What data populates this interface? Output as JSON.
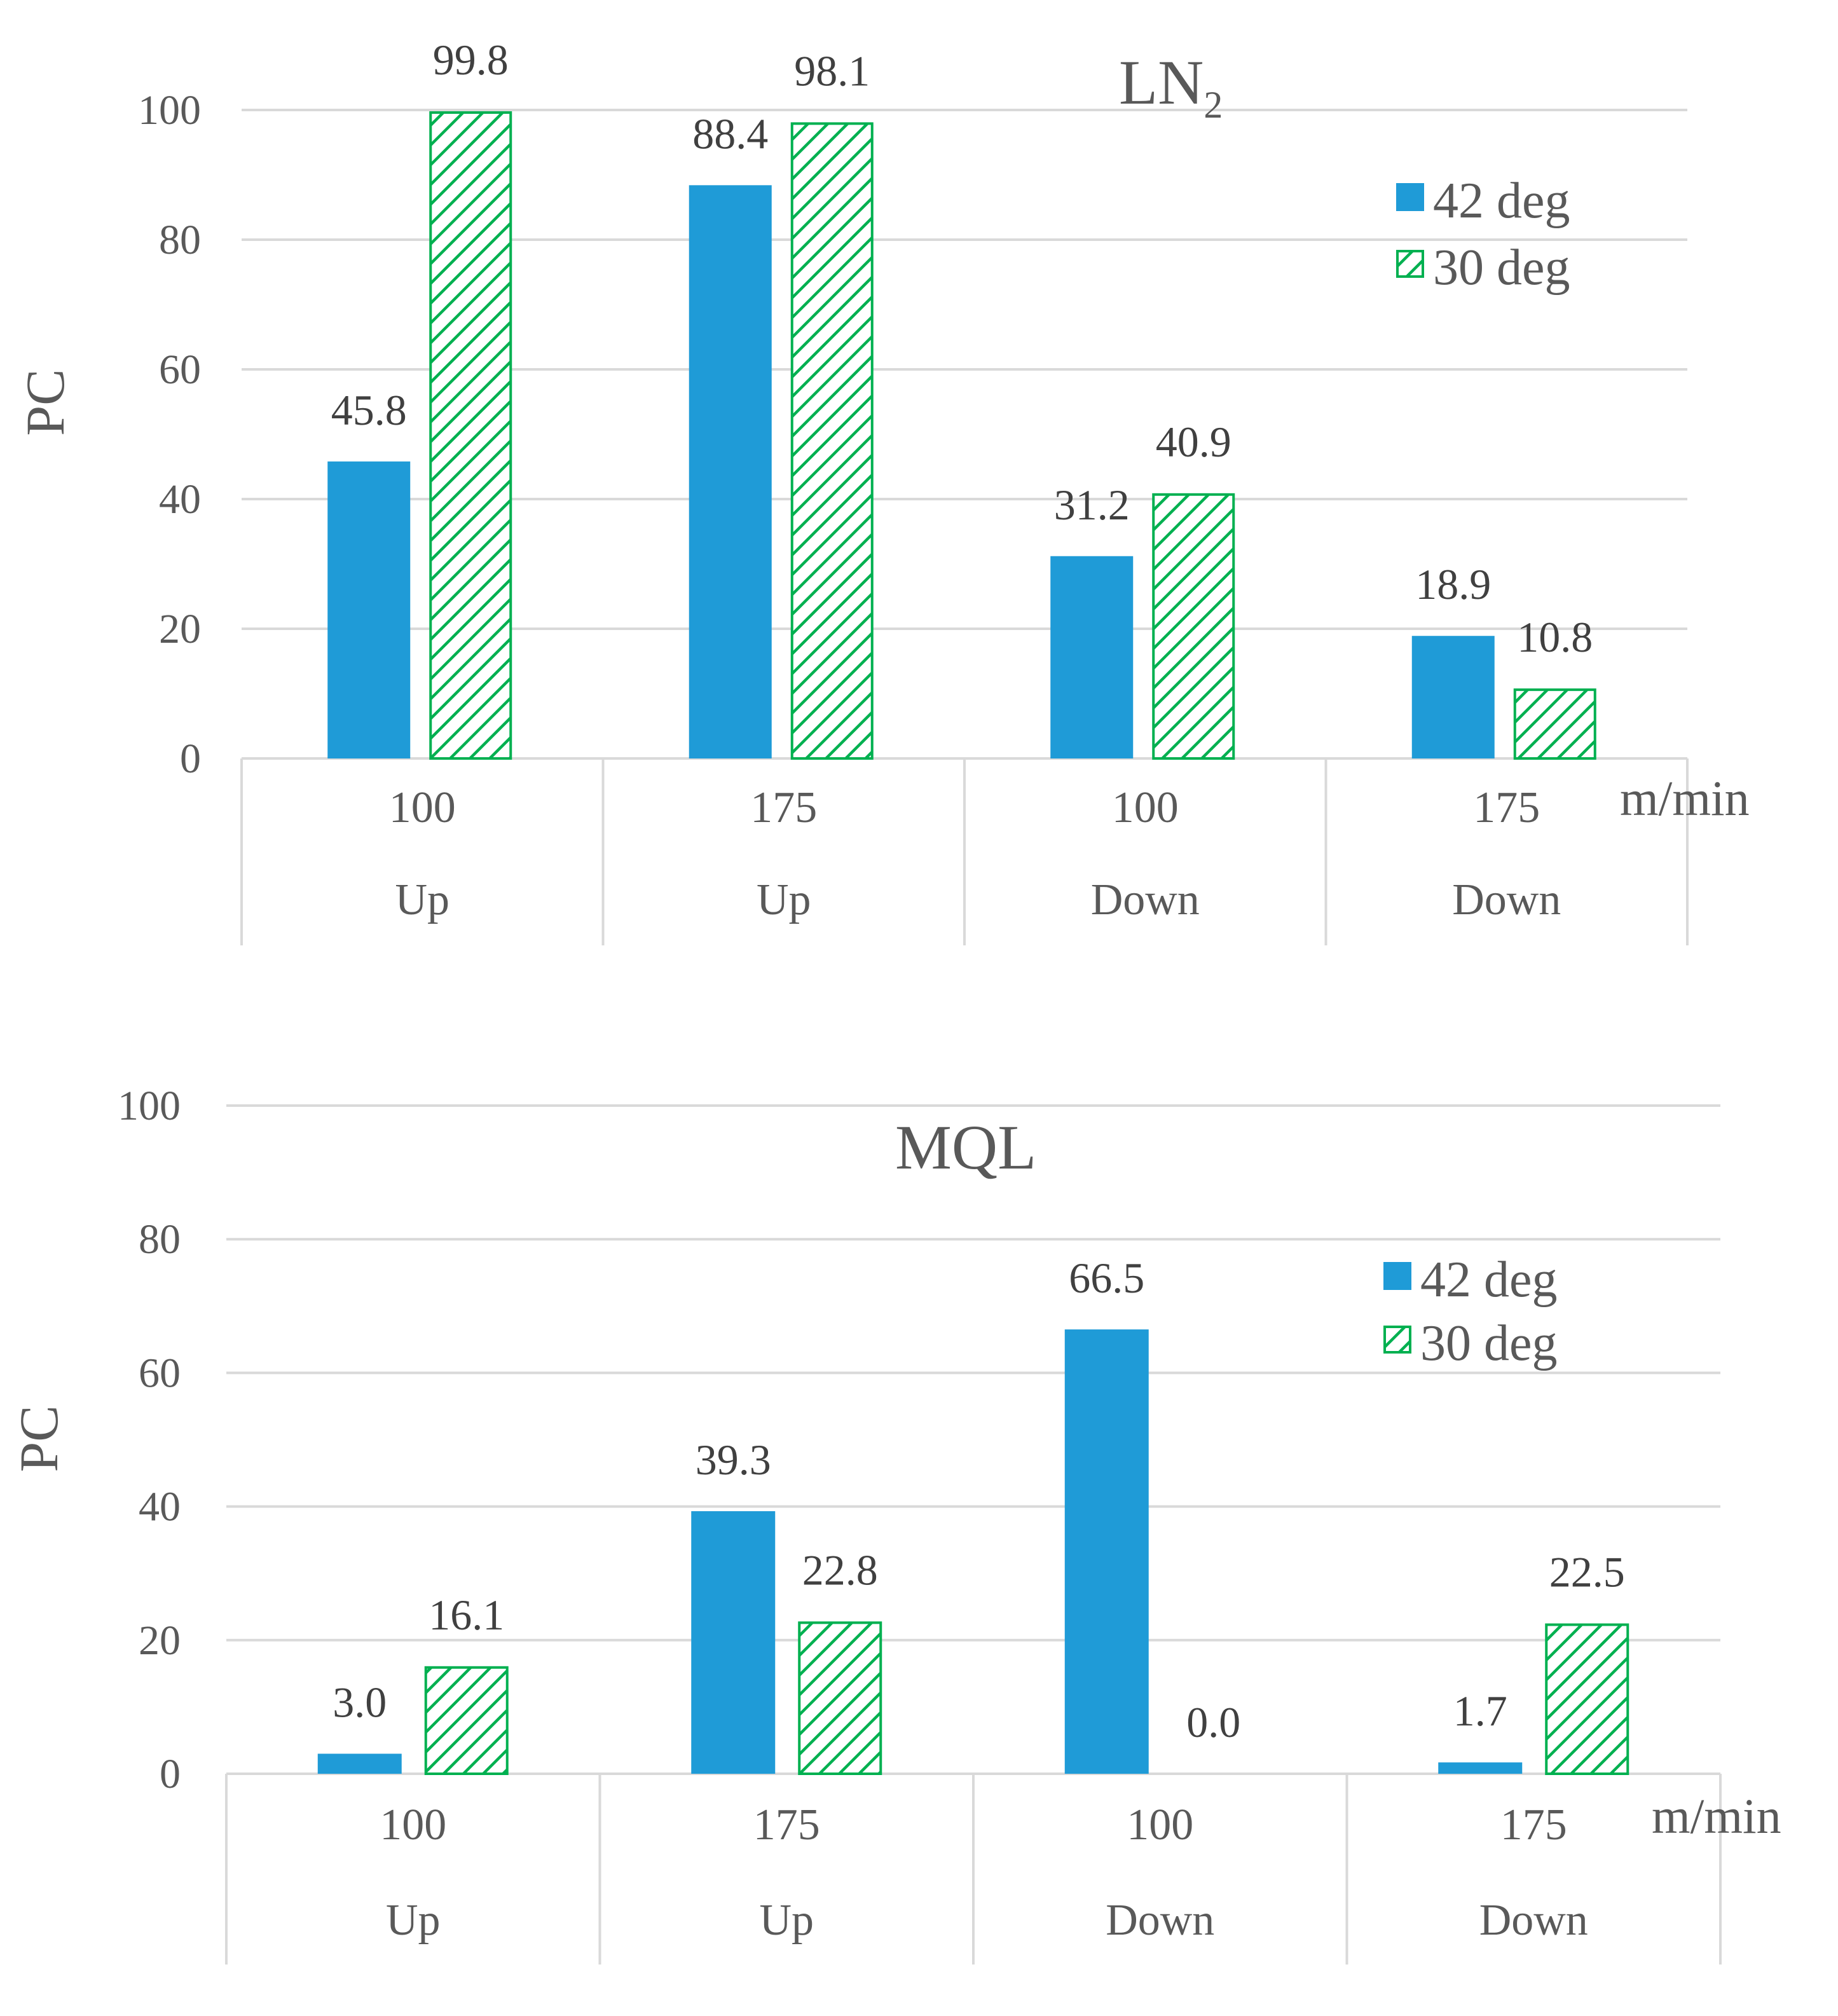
{
  "chart_data": [
    {
      "type": "bar",
      "title": "LN",
      "title_subscript": "2",
      "ylabel": "PC",
      "unit_label": "m/min",
      "ylim": [
        0,
        100
      ],
      "yticks": [
        "0",
        "20",
        "40",
        "60",
        "80",
        "100"
      ],
      "categories": [
        {
          "speed": "100",
          "direction": "Up"
        },
        {
          "speed": "175",
          "direction": "Up"
        },
        {
          "speed": "100",
          "direction": "Down"
        },
        {
          "speed": "175",
          "direction": "Down"
        }
      ],
      "series": [
        {
          "name": "42 deg",
          "style": "solid",
          "color": "#1f9bd7",
          "values": [
            45.8,
            88.4,
            31.2,
            18.9
          ],
          "labels": [
            "45.8",
            "88.4",
            "31.2",
            "18.9"
          ]
        },
        {
          "name": "30 deg",
          "style": "hatched",
          "color": "#00b050",
          "values": [
            99.8,
            98.1,
            40.9,
            10.8
          ],
          "labels": [
            "99.8",
            "98.1",
            "40.9",
            "10.8"
          ]
        }
      ]
    },
    {
      "type": "bar",
      "title": "MQL",
      "title_subscript": "",
      "ylabel": "PC",
      "unit_label": "m/min",
      "ylim": [
        0,
        100
      ],
      "yticks": [
        "0",
        "20",
        "40",
        "60",
        "80",
        "100"
      ],
      "categories": [
        {
          "speed": "100",
          "direction": "Up"
        },
        {
          "speed": "175",
          "direction": "Up"
        },
        {
          "speed": "100",
          "direction": "Down"
        },
        {
          "speed": "175",
          "direction": "Down"
        }
      ],
      "series": [
        {
          "name": "42 deg",
          "style": "solid",
          "color": "#1f9bd7",
          "values": [
            3.0,
            39.3,
            66.5,
            1.7
          ],
          "labels": [
            "3.0",
            "39.3",
            "66.5",
            "1.7"
          ]
        },
        {
          "name": "30 deg",
          "style": "hatched",
          "color": "#00b050",
          "values": [
            16.1,
            22.8,
            0.0,
            22.5
          ],
          "labels": [
            "16.1",
            "22.8",
            "0.0",
            "22.5"
          ]
        }
      ]
    }
  ]
}
